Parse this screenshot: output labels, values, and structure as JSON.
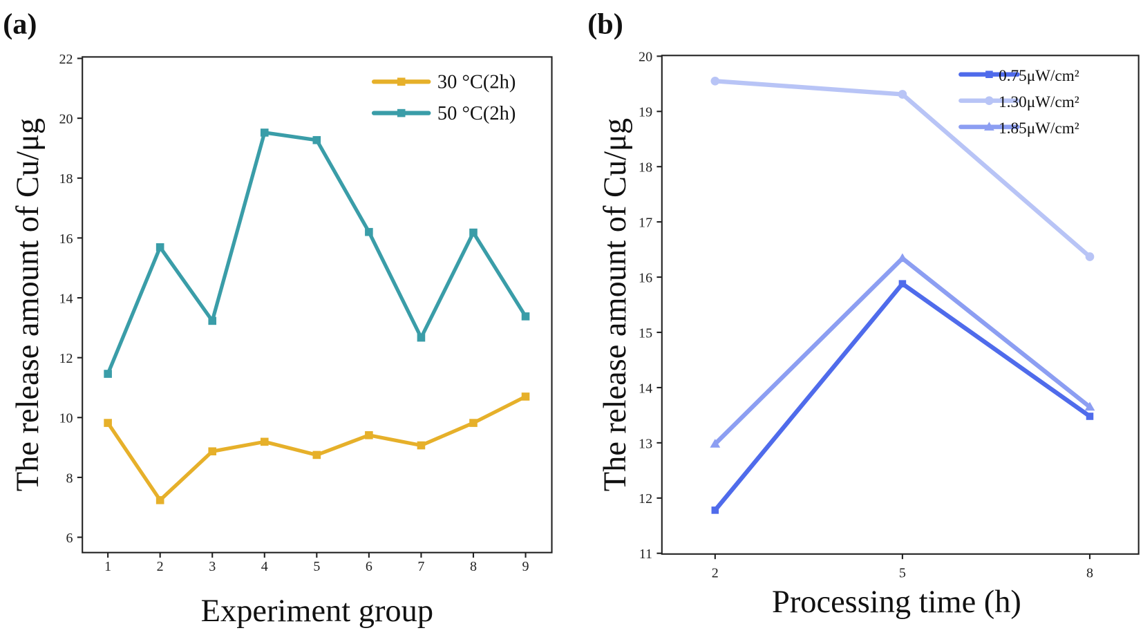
{
  "chart_data": [
    {
      "type": "line",
      "panel_label": "(a)",
      "xlabel": "Experiment group",
      "ylabel": "The release amount of Cu/μg",
      "x": [
        1,
        2,
        3,
        4,
        5,
        6,
        7,
        8,
        9
      ],
      "xticks": [
        "1",
        "2",
        "3",
        "4",
        "5",
        "6",
        "7",
        "8",
        "9"
      ],
      "yticks": [
        "6",
        "8",
        "10",
        "12",
        "14",
        "16",
        "18",
        "20",
        "22"
      ],
      "ylim": [
        5.5,
        22
      ],
      "legend_position": "top-right",
      "grid": false,
      "series": [
        {
          "name": "30 °C(2h)",
          "color": "#E6B02A",
          "marker": "square",
          "values": [
            9.82,
            7.24,
            8.87,
            9.19,
            8.75,
            9.41,
            9.07,
            9.82,
            10.7
          ]
        },
        {
          "name": "50 °C(2h)",
          "color": "#3A9DA8",
          "marker": "square",
          "values": [
            11.46,
            15.69,
            13.23,
            19.52,
            19.27,
            16.2,
            12.67,
            16.18,
            13.38
          ]
        }
      ]
    },
    {
      "type": "line",
      "panel_label": "(b)",
      "xlabel": "Processing time (h)",
      "ylabel": "The release amount of Cu/μg",
      "x": [
        2,
        5,
        8
      ],
      "xticks": [
        "2",
        "5",
        "8"
      ],
      "yticks": [
        "11",
        "12",
        "13",
        "14",
        "15",
        "16",
        "17",
        "18",
        "19",
        "20"
      ],
      "ylim": [
        11,
        20
      ],
      "legend_position": "top-right",
      "grid": false,
      "series": [
        {
          "name": "0.75μW/cm²",
          "color": "#4F6BEB",
          "marker": "square",
          "values": [
            11.78,
            15.88,
            13.48
          ]
        },
        {
          "name": "1.30μW/cm²",
          "color": "#B8C4F6",
          "marker": "circle",
          "values": [
            19.55,
            19.31,
            16.37
          ]
        },
        {
          "name": "1.85μW/cm²",
          "color": "#8C9EF2",
          "marker": "triangle",
          "values": [
            12.98,
            16.34,
            13.65
          ]
        }
      ]
    }
  ]
}
